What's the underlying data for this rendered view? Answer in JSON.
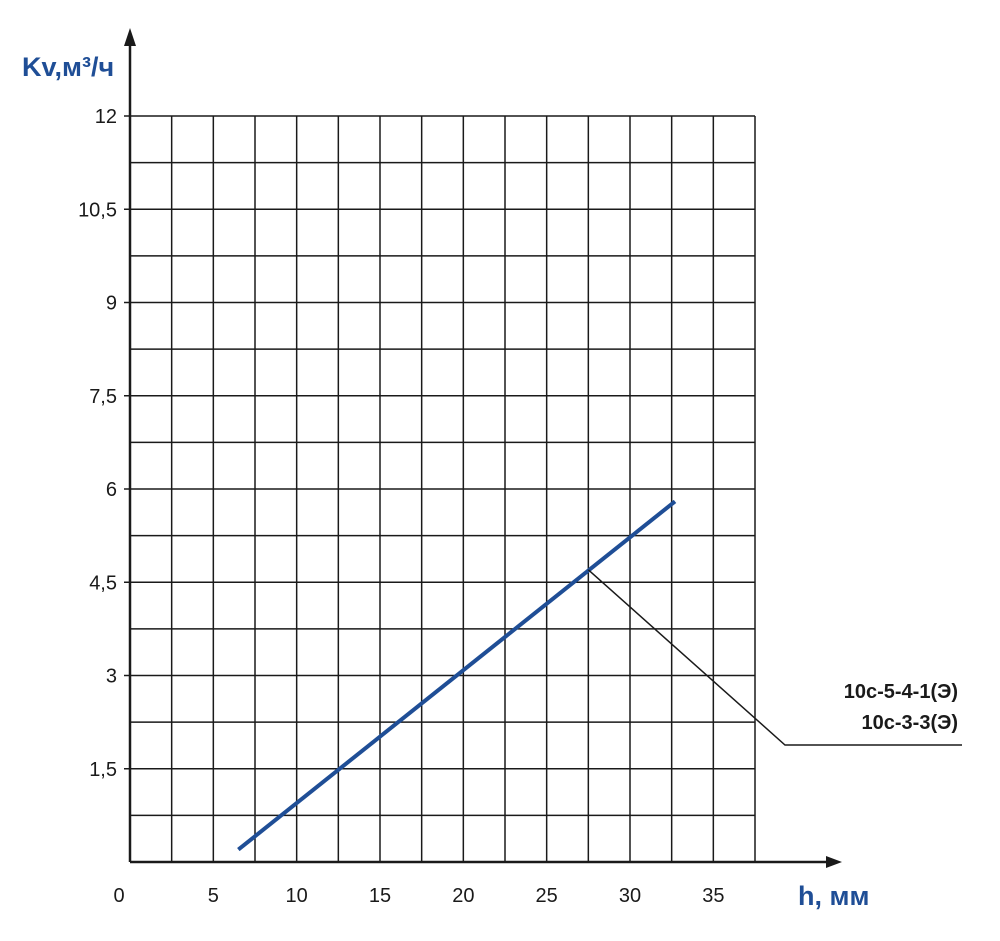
{
  "chart_data": {
    "type": "line",
    "xlabel": "h, мм",
    "ylabel": "Kv,м³/ч",
    "xlim": [
      0,
      37.5
    ],
    "ylim": [
      0,
      12
    ],
    "x_ticks": [
      {
        "value": 0,
        "label": "0"
      },
      {
        "value": 5,
        "label": "5"
      },
      {
        "value": 10,
        "label": "10"
      },
      {
        "value": 15,
        "label": "15"
      },
      {
        "value": 20,
        "label": "20"
      },
      {
        "value": 25,
        "label": "25"
      },
      {
        "value": 30,
        "label": "30"
      },
      {
        "value": 35,
        "label": "35"
      }
    ],
    "y_ticks": [
      {
        "value": 1.5,
        "label": "1,5"
      },
      {
        "value": 3,
        "label": "3"
      },
      {
        "value": 4.5,
        "label": "4,5"
      },
      {
        "value": 6,
        "label": "6"
      },
      {
        "value": 7.5,
        "label": "7,5"
      },
      {
        "value": 9,
        "label": "9"
      },
      {
        "value": 10.5,
        "label": "10,5"
      },
      {
        "value": 12,
        "label": "12"
      }
    ],
    "x_grid_step": 2.5,
    "y_grid_step": 0.75,
    "grid": true,
    "series": [
      {
        "color": "#1f4e96",
        "x": [
          6.5,
          32.7
        ],
        "y": [
          0.2,
          5.8
        ]
      }
    ],
    "annotations": [
      {
        "text": "10с-5-4-1(Э)"
      },
      {
        "text": "10с-3-3(Э)"
      }
    ],
    "annotation_point": {
      "x": 27.5,
      "y": 4.7
    }
  }
}
